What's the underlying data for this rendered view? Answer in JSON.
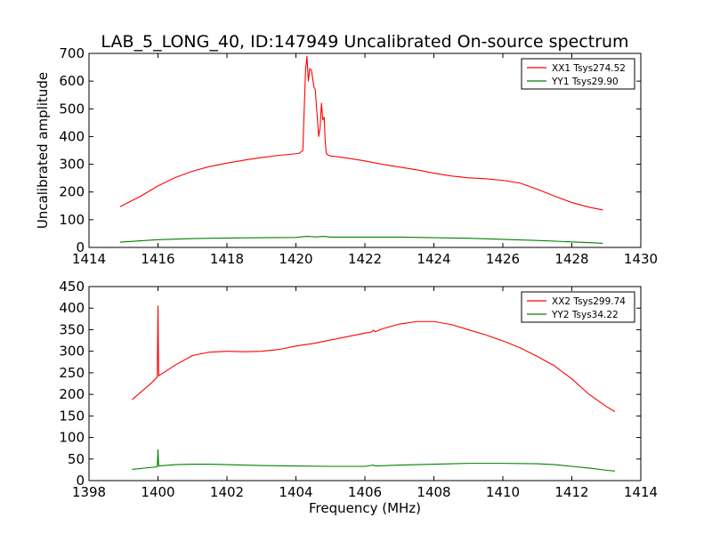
{
  "chart_data": [
    {
      "type": "line",
      "title": "LAB_5_LONG_40, ID:147949 Uncalibrated On-source spectrum",
      "xlabel": "",
      "ylabel": "Uncalibrated amplitude",
      "xlim": [
        1414,
        1430
      ],
      "ylim": [
        0,
        700
      ],
      "xticks": [
        1414,
        1416,
        1418,
        1420,
        1422,
        1424,
        1426,
        1428,
        1430
      ],
      "yticks": [
        0,
        100,
        200,
        300,
        400,
        500,
        600,
        700
      ],
      "legend_position": "top-right",
      "series": [
        {
          "name": "XX1 Tsys274.52",
          "color": "#ff0000",
          "x": [
            1414.9,
            1415.5,
            1416.0,
            1416.5,
            1417.0,
            1417.5,
            1418.0,
            1418.5,
            1419.0,
            1419.5,
            1420.0,
            1420.1,
            1420.2,
            1420.28,
            1420.32,
            1420.36,
            1420.4,
            1420.45,
            1420.52,
            1420.56,
            1420.62,
            1420.66,
            1420.7,
            1420.74,
            1420.78,
            1420.82,
            1420.85,
            1420.88,
            1420.92,
            1421.0,
            1421.5,
            1422.0,
            1422.5,
            1423.0,
            1423.5,
            1424.0,
            1424.5,
            1425.0,
            1425.5,
            1426.0,
            1426.5,
            1427.0,
            1427.5,
            1428.0,
            1428.5,
            1428.9
          ],
          "y": [
            147,
            185,
            222,
            252,
            275,
            292,
            304,
            315,
            324,
            332,
            338,
            340,
            350,
            640,
            690,
            600,
            645,
            640,
            580,
            570,
            470,
            400,
            430,
            520,
            460,
            470,
            380,
            340,
            334,
            330,
            322,
            312,
            300,
            290,
            280,
            268,
            258,
            251,
            248,
            242,
            232,
            210,
            185,
            162,
            145,
            135
          ]
        },
        {
          "name": "YY1 Tsys29.90",
          "color": "#008000",
          "x": [
            1414.9,
            1416.0,
            1417.0,
            1418.0,
            1419.0,
            1420.0,
            1420.3,
            1420.6,
            1420.8,
            1421.0,
            1422.0,
            1423.0,
            1424.0,
            1425.0,
            1426.0,
            1427.0,
            1428.0,
            1428.9
          ],
          "y": [
            19,
            28,
            32,
            34,
            35,
            36,
            40,
            38,
            40,
            37,
            37,
            37,
            35,
            33,
            29,
            25,
            20,
            15
          ]
        }
      ]
    },
    {
      "type": "line",
      "title": "",
      "xlabel": "Frequency (MHz)",
      "ylabel": "",
      "xlim": [
        1398,
        1414
      ],
      "ylim": [
        0,
        450
      ],
      "xticks": [
        1398,
        1400,
        1402,
        1404,
        1406,
        1408,
        1410,
        1412,
        1414
      ],
      "yticks": [
        0,
        50,
        100,
        150,
        200,
        250,
        300,
        350,
        400,
        450
      ],
      "legend_position": "top-right",
      "series": [
        {
          "name": "XX2 Tsys299.74",
          "color": "#ff0000",
          "x": [
            1399.25,
            1399.5,
            1399.75,
            1399.98,
            1400.0,
            1400.02,
            1400.5,
            1401.0,
            1401.5,
            1402.0,
            1402.5,
            1403.0,
            1403.5,
            1404.0,
            1404.5,
            1405.0,
            1405.5,
            1406.0,
            1406.2,
            1406.25,
            1406.3,
            1406.5,
            1407.0,
            1407.5,
            1408.0,
            1408.5,
            1409.0,
            1409.5,
            1410.0,
            1410.5,
            1411.0,
            1411.5,
            1412.0,
            1412.5,
            1413.0,
            1413.25
          ],
          "y": [
            188,
            205,
            222,
            240,
            405,
            243,
            268,
            290,
            298,
            300,
            299,
            300,
            304,
            312,
            318,
            326,
            334,
            342,
            345,
            349,
            345,
            352,
            363,
            369,
            369,
            362,
            350,
            338,
            324,
            308,
            288,
            266,
            236,
            200,
            172,
            160
          ]
        },
        {
          "name": "YY2 Tsys34.22",
          "color": "#008000",
          "x": [
            1399.25,
            1399.98,
            1400.0,
            1400.02,
            1400.5,
            1401.0,
            1401.5,
            1402.0,
            1403.0,
            1404.0,
            1405.0,
            1406.0,
            1406.25,
            1406.3,
            1407.0,
            1408.0,
            1409.0,
            1410.0,
            1411.0,
            1411.5,
            1412.0,
            1412.5,
            1413.0,
            1413.25
          ],
          "y": [
            26,
            32,
            72,
            34,
            37,
            38,
            38,
            37,
            35,
            34,
            33,
            33,
            36,
            34,
            36,
            38,
            40,
            40,
            39,
            37,
            33,
            29,
            24,
            22
          ]
        }
      ]
    }
  ]
}
